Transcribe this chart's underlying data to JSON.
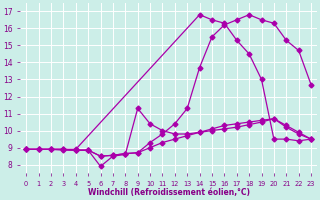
{
  "background_color": "#cceee8",
  "line_color": "#aa00aa",
  "grid_color": "#ffffff",
  "xlabel": "Windchill (Refroidissement éolien,°C)",
  "xlabel_color": "#880088",
  "tick_color": "#880088",
  "ylim": [
    7.5,
    17.5
  ],
  "xlim": [
    -0.5,
    23.5
  ],
  "yticks": [
    8,
    9,
    10,
    11,
    12,
    13,
    14,
    15,
    16,
    17
  ],
  "xticks": [
    0,
    1,
    2,
    3,
    4,
    5,
    6,
    7,
    8,
    9,
    10,
    11,
    12,
    13,
    14,
    15,
    16,
    17,
    18,
    19,
    20,
    21,
    22,
    23
  ],
  "line1_x": [
    0,
    1,
    2,
    3,
    4,
    5,
    6,
    7,
    8,
    9,
    10,
    11,
    12,
    13,
    14,
    15,
    16,
    17,
    18,
    19,
    20,
    21,
    22,
    23
  ],
  "line1_y": [
    8.9,
    8.9,
    8.9,
    8.85,
    8.85,
    8.85,
    8.5,
    8.55,
    8.65,
    8.7,
    9.3,
    9.8,
    10.4,
    11.3,
    13.7,
    15.5,
    16.2,
    16.5,
    16.8,
    16.5,
    16.3,
    15.3,
    14.7,
    12.7
  ],
  "line2_x": [
    0,
    1,
    2,
    3,
    4,
    5,
    6,
    7,
    8,
    9,
    10,
    11,
    12,
    13,
    14,
    15,
    16,
    17,
    18,
    19,
    20,
    21,
    22,
    23
  ],
  "line2_y": [
    8.9,
    8.9,
    8.9,
    8.9,
    8.85,
    8.85,
    7.9,
    8.5,
    8.6,
    11.3,
    10.4,
    10.0,
    9.8,
    9.8,
    9.9,
    10.0,
    10.1,
    10.2,
    10.35,
    10.5,
    10.7,
    10.2,
    9.8,
    9.5
  ],
  "line3_x": [
    0,
    1,
    2,
    3,
    4,
    5,
    6,
    7,
    8,
    9,
    10,
    11,
    12,
    13,
    14,
    15,
    16,
    17,
    18,
    19,
    20,
    21,
    22,
    23
  ],
  "line3_y": [
    8.9,
    8.9,
    8.9,
    8.9,
    8.85,
    8.85,
    8.5,
    8.55,
    8.65,
    8.7,
    9.0,
    9.3,
    9.5,
    9.7,
    9.9,
    10.1,
    10.3,
    10.4,
    10.5,
    10.6,
    10.7,
    10.3,
    9.9,
    9.5
  ],
  "line4_x": [
    0,
    4,
    14,
    15,
    16,
    17,
    18,
    19,
    20,
    21,
    22,
    23
  ],
  "line4_y": [
    8.9,
    8.9,
    16.8,
    16.5,
    16.3,
    15.3,
    14.5,
    13.0,
    9.5,
    9.5,
    9.4,
    9.5
  ],
  "marker": "D",
  "markersize": 2.5,
  "linewidth": 0.9
}
